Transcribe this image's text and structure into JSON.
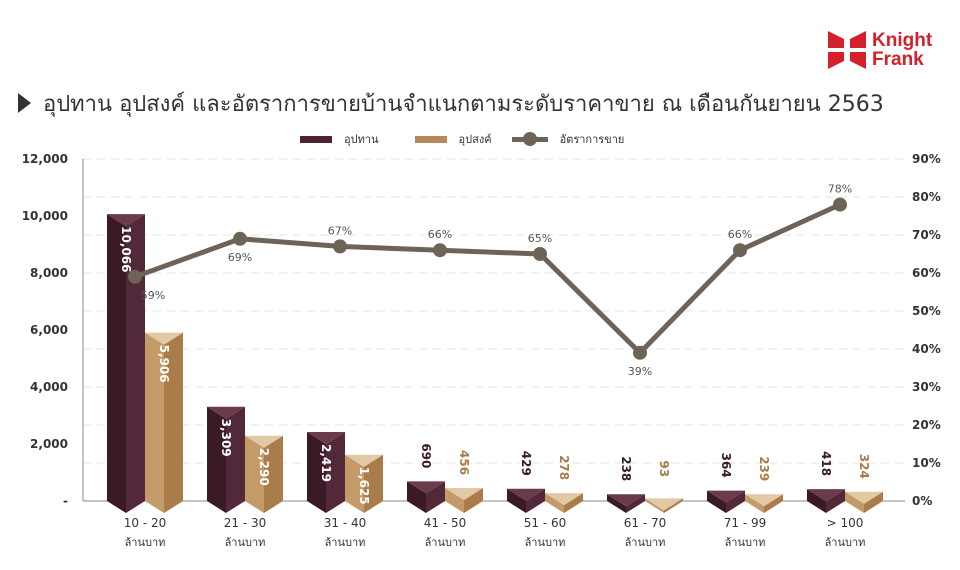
{
  "brand": {
    "line1": "Knight",
    "line2": "Frank",
    "color": "#d4202d"
  },
  "title": "อุปทาน อุปสงค์ และอัตราการขายบ้านจำแนกตามระดับราคาขาย ณ เดือนกันยายน 2563",
  "legend": [
    {
      "label": "อุปทาน",
      "color": "#4a2230"
    },
    {
      "label": "อุปสงค์",
      "color": "#b48a5a"
    },
    {
      "label": "อัตราการขาย",
      "color": "#6d6357"
    }
  ],
  "chart_data": {
    "type": "bar",
    "title": "อุปทาน อุปสงค์ และอัตราการขายบ้านจำแนกตามระดับราคาขาย ณ เดือนกันยายน 2563",
    "categories": [
      "10 - 20 ล้านบาท",
      "21 - 30 ล้านบาท",
      "31 - 40 ล้านบาท",
      "41 - 50 ล้านบาท",
      "51 - 60 ล้านบาท",
      "61 - 70 ล้านบาท",
      "71 - 99 ล้านบาท",
      "> 100 ล้านบาท"
    ],
    "category_lines": [
      [
        "10 - 20",
        "ล้านบาท"
      ],
      [
        "21 - 30",
        "ล้านบาท"
      ],
      [
        "31 - 40",
        "ล้านบาท"
      ],
      [
        "41 - 50",
        "ล้านบาท"
      ],
      [
        "51 - 60",
        "ล้านบาท"
      ],
      [
        "61 - 70",
        "ล้านบาท"
      ],
      [
        "71 - 99",
        "ล้านบาท"
      ],
      [
        "> 100",
        "ล้านบาท"
      ]
    ],
    "series": [
      {
        "name": "อุปทาน",
        "type": "bar",
        "axis": "left",
        "color": "#4a2230",
        "values": [
          10066,
          3309,
          2419,
          690,
          429,
          238,
          364,
          418
        ],
        "labels": [
          "10,066",
          "3,309",
          "2,419",
          "690",
          "429",
          "238",
          "364",
          "418"
        ]
      },
      {
        "name": "อุปสงค์",
        "type": "bar",
        "axis": "left",
        "color": "#b48a5a",
        "values": [
          5906,
          2290,
          1625,
          456,
          278,
          93,
          239,
          324
        ],
        "labels": [
          "5,906",
          "2,290",
          "1,625",
          "456",
          "278",
          "93",
          "239",
          "324"
        ]
      },
      {
        "name": "อัตราการขาย",
        "type": "line",
        "axis": "right",
        "color": "#6d6357",
        "values": [
          59,
          69,
          67,
          66,
          65,
          39,
          66,
          78
        ],
        "labels": [
          "59%",
          "69%",
          "67%",
          "66%",
          "65%",
          "39%",
          "66%",
          "78%"
        ]
      }
    ],
    "left_axis": {
      "ylim": [
        0,
        12000
      ],
      "ticks": [
        "-",
        "2,000",
        "4,000",
        "6,000",
        "8,000",
        "10,000",
        "12,000"
      ]
    },
    "right_axis": {
      "ylim": [
        0,
        90
      ],
      "ticks": [
        "0%",
        "10%",
        "20%",
        "30%",
        "40%",
        "50%",
        "60%",
        "70%",
        "80%",
        "90%"
      ]
    },
    "grid": true,
    "legend_position": "top"
  }
}
